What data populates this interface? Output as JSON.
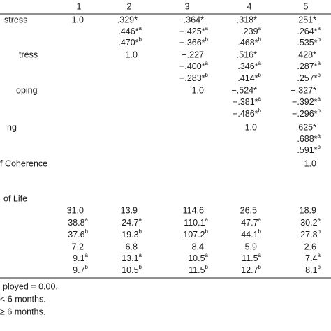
{
  "table": {
    "header": [
      "1",
      "2",
      "3",
      "4",
      "5"
    ],
    "rows": [
      {
        "label": "stress",
        "cells": [
          "1.0",
          ".329*",
          "−.364*",
          ".318*",
          ".251*"
        ]
      },
      {
        "label": null,
        "cells": [
          null,
          {
            "text": ".446*",
            "sup": "a"
          },
          {
            "text": "−.425*",
            "sup": "a"
          },
          {
            "text": ".239",
            "sup": "a"
          },
          {
            "text": ".264*",
            "sup": "a"
          }
        ]
      },
      {
        "label": null,
        "cells": [
          null,
          {
            "text": ".470*",
            "sup": "b"
          },
          {
            "text": "−.366*",
            "sup": "b"
          },
          {
            "text": ".468*",
            "sup": "b"
          },
          {
            "text": ".535*",
            "sup": "b"
          }
        ]
      },
      {
        "label": "tress",
        "cells": [
          null,
          "1.0",
          "−.227",
          ".516*",
          ".428*"
        ]
      },
      {
        "label": null,
        "cells": [
          null,
          null,
          {
            "text": "−.400*",
            "sup": "a"
          },
          {
            "text": ".346*",
            "sup": "a"
          },
          {
            "text": ".287*",
            "sup": "a"
          }
        ]
      },
      {
        "label": null,
        "cells": [
          null,
          null,
          {
            "text": "−.283*",
            "sup": "b"
          },
          {
            "text": ".414*",
            "sup": "b"
          },
          {
            "text": ".257*",
            "sup": "b"
          }
        ]
      },
      {
        "label": "oping",
        "cells": [
          null,
          null,
          "1.0",
          "−.524*",
          "−.327*"
        ]
      },
      {
        "label": null,
        "cells": [
          null,
          null,
          null,
          {
            "text": "−.381*",
            "sup": "a"
          },
          {
            "text": "−.392*",
            "sup": "a"
          }
        ]
      },
      {
        "label": null,
        "cells": [
          null,
          null,
          null,
          {
            "text": "−.486*",
            "sup": "b"
          },
          {
            "text": "−.296*",
            "sup": "b"
          }
        ]
      },
      {
        "label": "ng",
        "cells": [
          null,
          null,
          null,
          "1.0",
          ".625*"
        ]
      },
      {
        "label": null,
        "cells": [
          null,
          null,
          null,
          null,
          {
            "text": ".688*",
            "sup": "a"
          }
        ]
      },
      {
        "label": null,
        "cells": [
          null,
          null,
          null,
          null,
          {
            "text": ".591*",
            "sup": "b"
          }
        ]
      },
      {
        "label": "f Coherence",
        "cells": [
          null,
          null,
          null,
          null,
          "1.0"
        ]
      },
      {
        "label": "of Life",
        "cells": [
          null,
          null,
          null,
          null,
          null
        ]
      },
      {
        "label": null,
        "cells": [
          "31.0",
          "13.9",
          "114.6",
          "26.5",
          "18.9"
        ]
      },
      {
        "label": null,
        "cells": [
          {
            "text": "38.8",
            "sup": "a"
          },
          {
            "text": "24.7",
            "sup": "a"
          },
          {
            "text": "110.1",
            "sup": "a"
          },
          {
            "text": "47.7",
            "sup": "a"
          },
          {
            "text": "30.2",
            "sup": "a"
          }
        ]
      },
      {
        "label": null,
        "cells": [
          {
            "text": "37.6",
            "sup": "b"
          },
          {
            "text": "19.3",
            "sup": "b"
          },
          {
            "text": "107.2",
            "sup": "b"
          },
          {
            "text": "44.1",
            "sup": "b"
          },
          {
            "text": "27.8",
            "sup": "b"
          }
        ]
      },
      {
        "label": null,
        "cells": [
          "7.2",
          "6.8",
          "8.4",
          "5.9",
          "2.6"
        ]
      },
      {
        "label": null,
        "cells": [
          {
            "text": "9.1",
            "sup": "a"
          },
          {
            "text": "13.1",
            "sup": "a"
          },
          {
            "text": "10.5",
            "sup": "a"
          },
          {
            "text": "11.5",
            "sup": "a"
          },
          {
            "text": "7.4",
            "sup": "a"
          }
        ]
      },
      {
        "label": null,
        "cells": [
          {
            "text": "9.7",
            "sup": "b"
          },
          {
            "text": "10.5",
            "sup": "b"
          },
          {
            "text": "11.5",
            "sup": "b"
          },
          {
            "text": "12.7",
            "sup": "b"
          },
          {
            "text": "8.1",
            "sup": "b"
          }
        ]
      }
    ],
    "footnotes": [
      "ployed = 0.00.",
      "< 6 months.",
      "≥ 6 months."
    ]
  }
}
